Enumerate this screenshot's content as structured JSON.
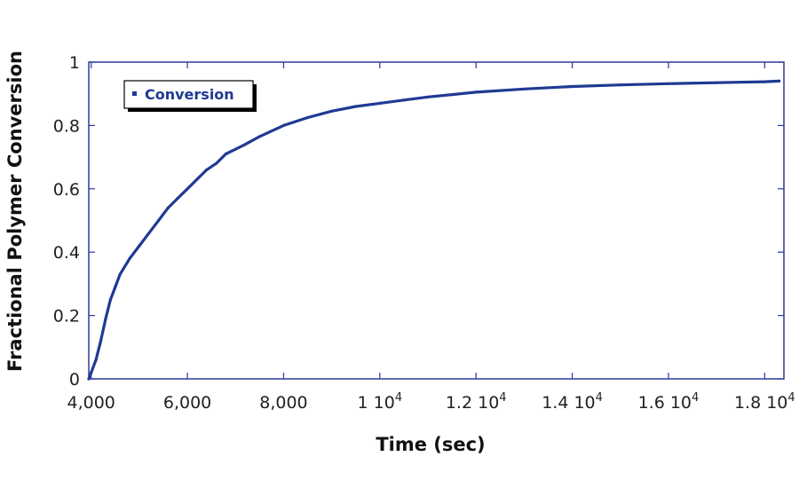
{
  "chart_data": {
    "type": "line",
    "title": "",
    "xlabel": "Time (sec)",
    "ylabel": "Fractional Polymer Conversion",
    "xlim": [
      3950,
      18400
    ],
    "ylim": [
      0,
      1
    ],
    "grid": false,
    "legend_position": "top-left",
    "x_ticks": [
      {
        "value": 4000,
        "label": "4,000"
      },
      {
        "value": 6000,
        "label": "6,000"
      },
      {
        "value": 8000,
        "label": "8,000"
      },
      {
        "value": 10000,
        "label": "1 10",
        "exp": "4"
      },
      {
        "value": 12000,
        "label": "1.2 10",
        "exp": "4"
      },
      {
        "value": 14000,
        "label": "1.4 10",
        "exp": "4"
      },
      {
        "value": 16000,
        "label": "1.6 10",
        "exp": "4"
      },
      {
        "value": 18000,
        "label": "1.8 10",
        "exp": "4"
      }
    ],
    "y_ticks": [
      {
        "value": 0,
        "label": "0"
      },
      {
        "value": 0.2,
        "label": "0.2"
      },
      {
        "value": 0.4,
        "label": "0.4"
      },
      {
        "value": 0.6,
        "label": "0.6"
      },
      {
        "value": 0.8,
        "label": "0.8"
      },
      {
        "value": 1,
        "label": "1"
      }
    ],
    "series": [
      {
        "name": "Conversion",
        "color": "#1f3a93",
        "x": [
          3950,
          4000,
          4100,
          4200,
          4300,
          4400,
          4500,
          4600,
          4800,
          5000,
          5200,
          5400,
          5600,
          5800,
          6000,
          6200,
          6400,
          6600,
          6800,
          7000,
          7200,
          7500,
          8000,
          8500,
          9000,
          9500,
          10000,
          10500,
          11000,
          12000,
          13000,
          14000,
          15000,
          16000,
          17000,
          18000,
          18300
        ],
        "y": [
          0.0,
          0.02,
          0.06,
          0.12,
          0.19,
          0.25,
          0.29,
          0.33,
          0.38,
          0.42,
          0.46,
          0.5,
          0.54,
          0.57,
          0.6,
          0.63,
          0.66,
          0.68,
          0.71,
          0.725,
          0.74,
          0.765,
          0.8,
          0.825,
          0.845,
          0.86,
          0.87,
          0.88,
          0.89,
          0.905,
          0.915,
          0.923,
          0.928,
          0.932,
          0.935,
          0.938,
          0.94
        ]
      }
    ]
  }
}
